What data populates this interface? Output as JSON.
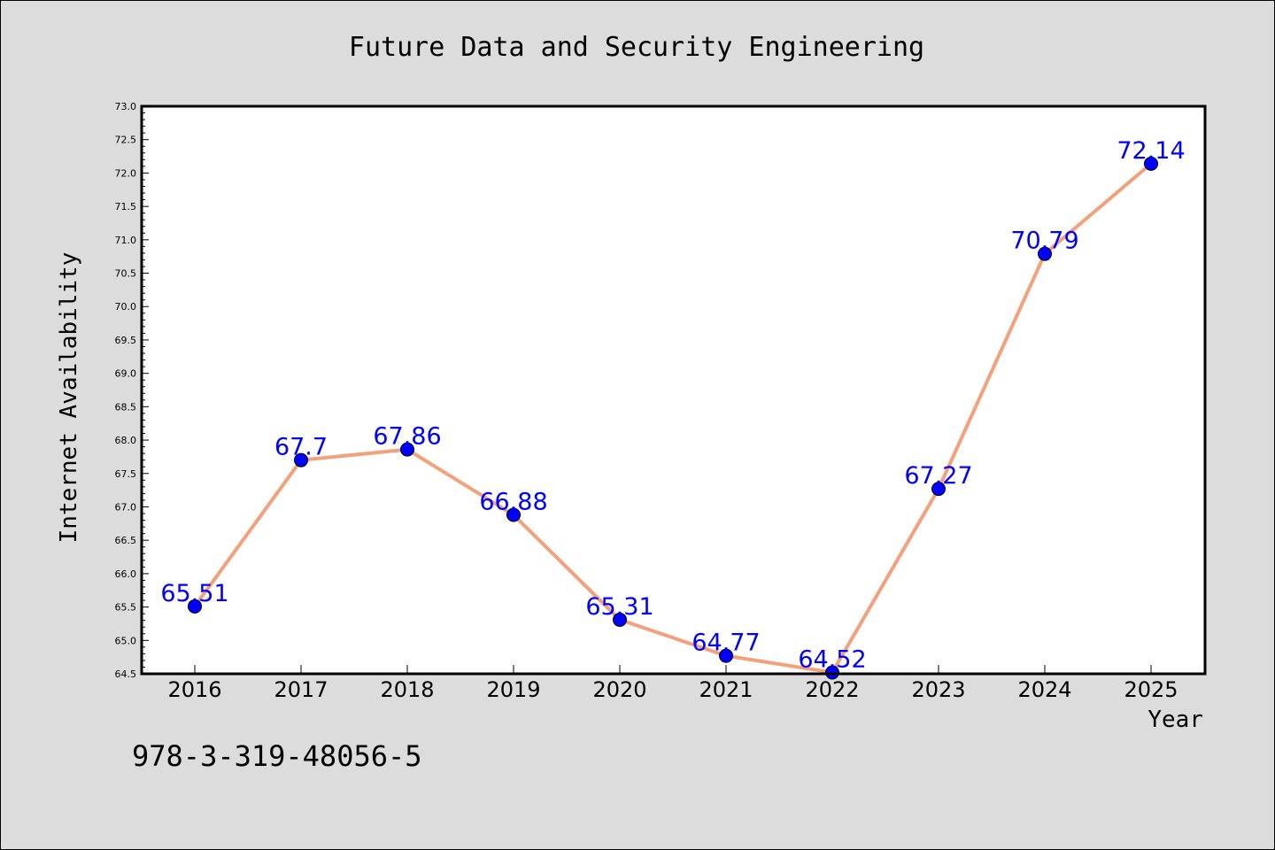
{
  "chart_data": {
    "type": "line",
    "title": "Future Data and Security Engineering",
    "xlabel": "Year",
    "ylabel": "Internet Availability",
    "categories": [
      "2016",
      "2017",
      "2018",
      "2019",
      "2020",
      "2021",
      "2022",
      "2023",
      "2024",
      "2025"
    ],
    "series": [
      {
        "values": [
          65.51,
          67.7,
          67.86,
          66.88,
          65.31,
          64.77,
          64.52,
          67.27,
          70.79,
          72.14
        ],
        "labels": [
          "65.51",
          "67.7",
          "67.86",
          "66.88",
          "65.31",
          "64.77",
          "64.52",
          "67.27",
          "70.79",
          "72.14"
        ],
        "line_color": "#f4a07a",
        "marker_color": "#0000ff"
      }
    ],
    "ylim": [
      64.5,
      73.0
    ],
    "ytick_step": 0.5,
    "grid": false,
    "legend": "none",
    "background_color": "#dcdcdc",
    "plot_background_color": "#ffffff",
    "label_color": "#0000ff"
  },
  "footer": {
    "text": "978-3-319-48056-5"
  }
}
